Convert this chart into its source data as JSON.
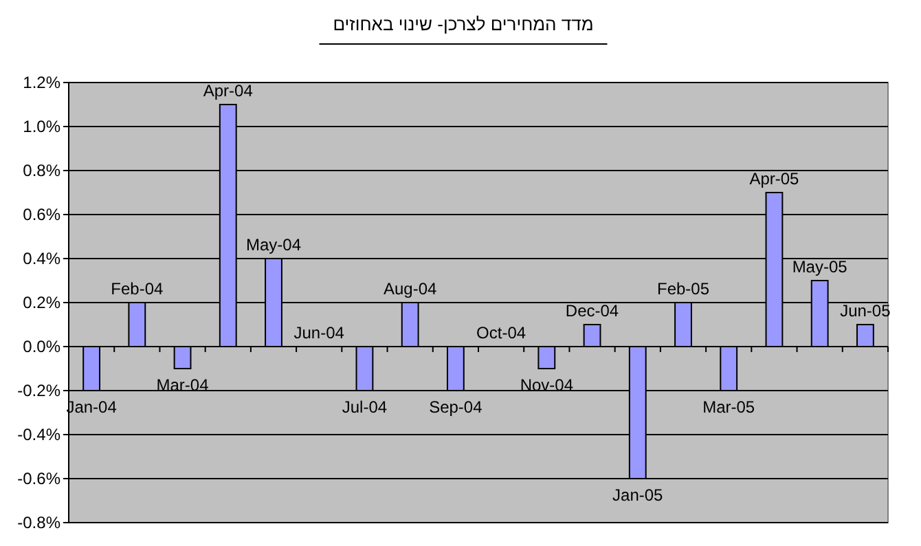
{
  "chart_data": {
    "type": "bar",
    "title": "מדד המחירים לצרכן- שינוי באחוזים",
    "categories": [
      "Jan-04",
      "Feb-04",
      "Mar-04",
      "Apr-04",
      "May-04",
      "Jun-04",
      "Jul-04",
      "Aug-04",
      "Sep-04",
      "Oct-04",
      "Nov-04",
      "Dec-04",
      "Jan-05",
      "Feb-05",
      "Mar-05",
      "Apr-05",
      "May-05",
      "Jun-05"
    ],
    "values": [
      -0.2,
      0.2,
      -0.1,
      1.1,
      0.4,
      0,
      -0.2,
      0.2,
      -0.2,
      0,
      -0.1,
      0.1,
      -0.6,
      0.2,
      -0.2,
      0.7,
      0.3,
      0.1
    ],
    "color": "#9999ff",
    "ylim": [
      -0.8,
      1.2
    ],
    "yticks": [
      {
        "value": -0.8,
        "label": "-0.8%"
      },
      {
        "value": -0.6,
        "label": "-0.6%"
      },
      {
        "value": -0.4,
        "label": "-0.4%"
      },
      {
        "value": -0.2,
        "label": "-0.2%"
      },
      {
        "value": 0,
        "label": "0.0%"
      },
      {
        "value": 0.2,
        "label": "0.2%"
      },
      {
        "value": 0.4,
        "label": "0.4%"
      },
      {
        "value": 0.6,
        "label": "0.6%"
      },
      {
        "value": 0.8,
        "label": "0.8%"
      },
      {
        "value": 1.0,
        "label": "1.0%"
      },
      {
        "value": 1.2,
        "label": "1.2%"
      }
    ],
    "grid": "y"
  }
}
